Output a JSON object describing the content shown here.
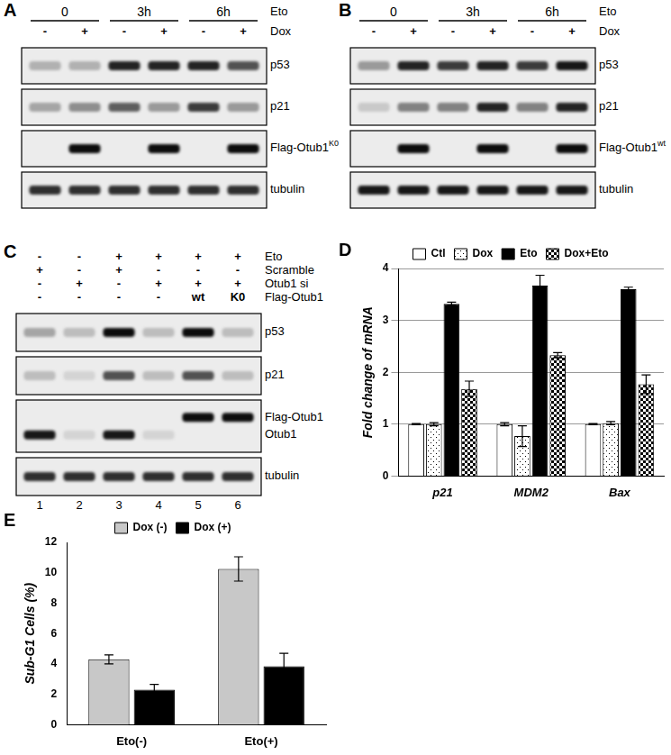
{
  "blots": [
    {
      "panel": "A",
      "groups": {
        "label": "Eto",
        "texts": [
          "0",
          "3h",
          "6h"
        ]
      },
      "rows": [
        {
          "label": "Dox",
          "lanes": [
            "-",
            "+",
            "-",
            "+",
            "-",
            "+"
          ]
        }
      ],
      "blots": [
        {
          "rows": [
            {
              "label": "p53",
              "bands": [
                0.25,
                0.25,
                0.85,
                0.85,
                0.85,
                0.65
              ]
            }
          ]
        },
        {
          "rows": [
            {
              "label": "p21",
              "bands": [
                0.3,
                0.4,
                0.6,
                0.35,
                0.75,
                0.35
              ]
            }
          ]
        },
        {
          "rows": [
            {
              "label": "Flag-Otub1",
              "superscript": "K0",
              "bands": [
                0,
                0.95,
                0,
                0.95,
                0,
                0.95
              ]
            }
          ]
        },
        {
          "rows": [
            {
              "label": "tubulin",
              "bands": [
                0.8,
                0.8,
                0.8,
                0.8,
                0.8,
                0.8
              ]
            }
          ]
        }
      ]
    },
    {
      "panel": "B",
      "groups": {
        "label": "Eto",
        "texts": [
          "0",
          "3h",
          "6h"
        ]
      },
      "rows": [
        {
          "label": "Dox",
          "lanes": [
            "-",
            "+",
            "-",
            "+",
            "-",
            "+"
          ]
        }
      ],
      "blots": [
        {
          "rows": [
            {
              "label": "p53",
              "bands": [
                0.35,
                0.85,
                0.75,
                0.85,
                0.75,
                0.9
              ]
            }
          ]
        },
        {
          "rows": [
            {
              "label": "p21",
              "bands": [
                0.15,
                0.45,
                0.45,
                0.85,
                0.45,
                0.85
              ]
            }
          ]
        },
        {
          "rows": [
            {
              "label": "Flag-Otub1",
              "superscript": "wt",
              "bands": [
                0,
                0.95,
                0,
                0.95,
                0,
                0.95
              ]
            }
          ]
        },
        {
          "rows": [
            {
              "label": "tubulin",
              "bands": [
                0.9,
                0.9,
                0.9,
                0.9,
                0.9,
                0.9
              ]
            }
          ]
        }
      ]
    },
    {
      "panel": "C",
      "rows": [
        {
          "label": "Eto",
          "lanes": [
            "-",
            "-",
            "+",
            "+",
            "+",
            "+"
          ]
        },
        {
          "label": "Scramble",
          "lanes": [
            "+",
            "-",
            "+",
            "-",
            "-",
            "-"
          ]
        },
        {
          "label": "Otub1 si",
          "lanes": [
            "-",
            "+",
            "-",
            "+",
            "+",
            "+"
          ]
        },
        {
          "label": "Flag-Otub1",
          "lanes": [
            "-",
            "-",
            "-",
            "-",
            "wt",
            "K0"
          ]
        }
      ],
      "blots": [
        {
          "rows": [
            {
              "label": "p53",
              "bands": [
                0.3,
                0.2,
                0.95,
                0.2,
                0.95,
                0.2
              ]
            }
          ]
        },
        {
          "rows": [
            {
              "label": "p21",
              "bands": [
                0.2,
                0.1,
                0.65,
                0.2,
                0.65,
                0.2
              ]
            }
          ]
        },
        {
          "rows": [
            {
              "label": "Flag-Otub1",
              "bands": [
                0,
                0,
                0,
                0,
                0.95,
                0.95
              ]
            },
            {
              "label": "Otub1",
              "bands": [
                0.9,
                0.1,
                0.9,
                0.1,
                0,
                0
              ]
            }
          ]
        },
        {
          "rows": [
            {
              "label": "tubulin",
              "bands": [
                0.8,
                0.8,
                0.8,
                0.8,
                0.8,
                0.8
              ]
            }
          ]
        }
      ],
      "lane_numbers": [
        "1",
        "2",
        "3",
        "4",
        "5",
        "6"
      ]
    }
  ],
  "chart_data": [
    {
      "panel": "D",
      "type": "bar",
      "y_label": "Fold change of mRNA",
      "categories": [
        "p21",
        "MDM2",
        "Bax"
      ],
      "series": [
        {
          "name": "Ctl",
          "color": "#ffffff",
          "values": [
            1.0,
            1.0,
            1.0
          ],
          "errors": [
            0.01,
            0.03,
            0.01
          ]
        },
        {
          "name": "Dox",
          "color": "#ffffff",
          "values": [
            1.0,
            0.77,
            1.02
          ],
          "errors": [
            0.03,
            0.2,
            0.03
          ]
        },
        {
          "name": "Eto",
          "color": "#000000",
          "values": [
            3.32,
            3.67,
            3.6
          ],
          "errors": [
            0.03,
            0.2,
            0.04
          ]
        },
        {
          "name": "Dox+Eto",
          "color": "#ffffff",
          "values": [
            1.68,
            2.33,
            1.77
          ],
          "errors": [
            0.15,
            0.05,
            0.18
          ]
        }
      ],
      "ylim": [
        0,
        4
      ],
      "yticks": [
        0,
        1,
        2,
        3,
        4
      ],
      "grid": true,
      "legend": "top"
    },
    {
      "panel": "E",
      "type": "bar",
      "y_label": "Sub-G1 Cells (%)",
      "categories": [
        "Eto(-)",
        "Eto(+)"
      ],
      "series": [
        {
          "name": "Dox (-)",
          "color": "#c8c8c8",
          "values": [
            4.3,
            10.25
          ],
          "errors": [
            0.3,
            0.8
          ]
        },
        {
          "name": "Dox (+)",
          "color": "#000000",
          "values": [
            2.3,
            3.85
          ],
          "errors": [
            0.35,
            0.85
          ]
        }
      ],
      "ylim": [
        0,
        12
      ],
      "yticks": [
        0,
        2,
        4,
        6,
        8,
        10,
        12
      ],
      "grid": false,
      "legend": "top"
    }
  ]
}
